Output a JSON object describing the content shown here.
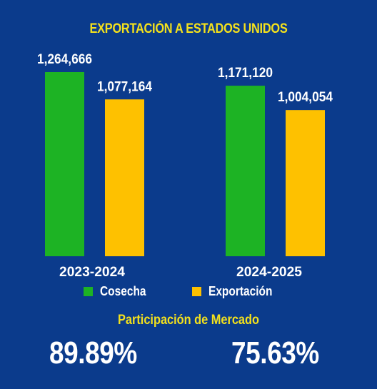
{
  "chart_data": {
    "type": "bar",
    "title": "EXPORTACIÓN A ESTADOS UNIDOS",
    "categories": [
      "2023-2024",
      "2024-2025"
    ],
    "series": [
      {
        "name": "Cosecha",
        "color": "#1db324",
        "values": [
          1264666,
          1171120
        ],
        "labels": [
          "1,264,666",
          "1,171,120"
        ]
      },
      {
        "name": "Exportación",
        "color": "#fec100",
        "values": [
          1077164,
          1004054
        ],
        "labels": [
          "1,077,164",
          "1,004,054"
        ]
      }
    ],
    "ylim": [
      0,
      1264666
    ],
    "grid": false,
    "legend": "bottom"
  },
  "market_share": {
    "title": "Participación de Mercado",
    "values": [
      "89.89%",
      "75.63%"
    ]
  },
  "colors": {
    "background": "#0b3b8c",
    "accent_text": "#f4e11c"
  }
}
